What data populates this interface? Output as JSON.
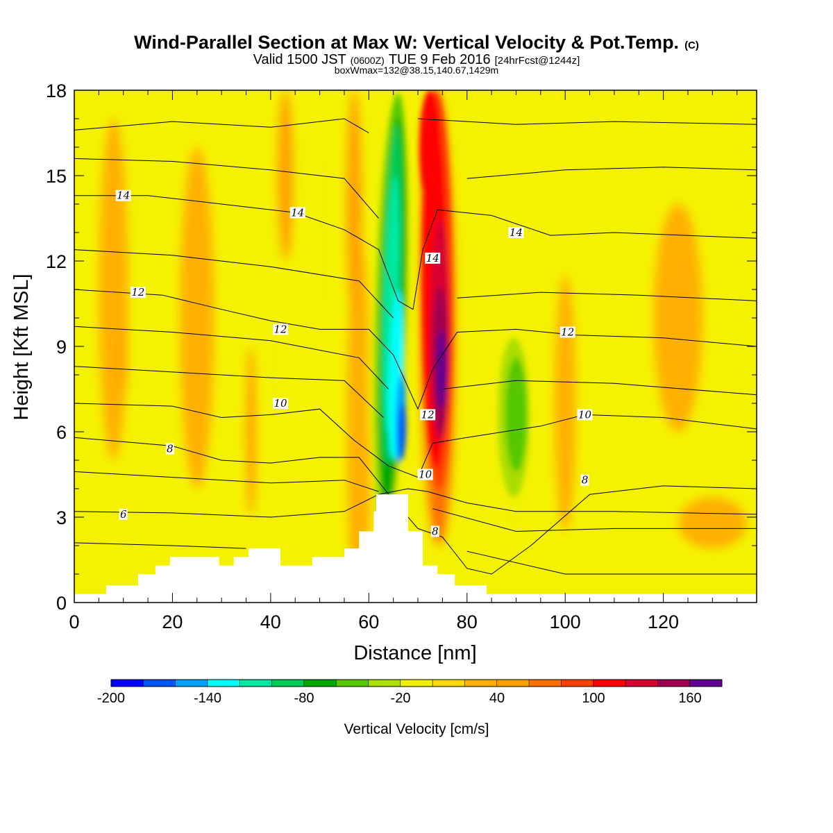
{
  "header": {
    "title_main": "Wind-Parallel Section at Max W: Vertical Velocity & Pot.Temp.",
    "title_mark": "(C)",
    "valid_pre": "Valid 1500 JST",
    "valid_z": "(0600Z)",
    "valid_date": "TUE 9 Feb 2016",
    "valid_fcst": "[24hrFcst@1244z]",
    "box_info": "boxWmax=132@38.15,140.67,1429m"
  },
  "chart_data": {
    "type": "heatmap",
    "xlabel": "Distance [nm]",
    "ylabel": "Height [Kft MSL]",
    "xlim": [
      0,
      139
    ],
    "ylim": [
      0,
      18
    ],
    "x_ticks": [
      "0",
      "20",
      "40",
      "60",
      "80",
      "100",
      "120"
    ],
    "y_ticks": [
      "0",
      "3",
      "6",
      "9",
      "12",
      "15",
      "18"
    ],
    "colorbar": {
      "label": "Vertical Velocity [cm/s]",
      "min": -200,
      "max": 180,
      "step": 20,
      "tick_labels": [
        "-200",
        "-140",
        "-80",
        "-20",
        "40",
        "100",
        "160"
      ],
      "colors": [
        "#0000ff",
        "#0055ff",
        "#00a0ff",
        "#00ffff",
        "#00e8a0",
        "#00cc55",
        "#00aa00",
        "#55c800",
        "#aadd00",
        "#f2f200",
        "#ffd700",
        "#ffb000",
        "#ffa000",
        "#ff7000",
        "#ff4000",
        "#ff0000",
        "#d80030",
        "#a00050",
        "#600090"
      ]
    },
    "velocity_features": [
      {
        "name": "main downdraft",
        "x": 65.5,
        "y": 6,
        "value": -200
      },
      {
        "name": "upper downdraft",
        "x": 64,
        "y": 13,
        "value": -140
      },
      {
        "name": "main updraft",
        "x": 74.5,
        "y": 8,
        "value": 160
      },
      {
        "name": "upper updraft",
        "x": 73,
        "y": 15,
        "value": 100
      },
      {
        "name": "lee downdraft",
        "x": 90,
        "y": 6.5,
        "value": -60
      },
      {
        "name": "downstream updraft",
        "x": 123,
        "y": 10,
        "value": 30
      }
    ],
    "theta_contours": [
      {
        "value": 6,
        "label": "6",
        "label_x": 10,
        "label_y": 3.1,
        "points": [
          [
            0,
            3.2
          ],
          [
            20,
            3.15
          ],
          [
            40,
            3.0
          ],
          [
            55,
            3.2
          ],
          [
            62,
            3.8
          ],
          [
            68,
            4.0
          ],
          [
            72,
            3.9
          ],
          [
            80,
            3.5
          ],
          [
            90,
            3.2
          ],
          [
            110,
            3.2
          ],
          [
            139,
            3.1
          ]
        ]
      },
      {
        "value": 8,
        "label": "8",
        "label_x": 19.5,
        "label_y": 5.4,
        "points": [
          [
            0,
            5.8
          ],
          [
            20,
            5.5
          ],
          [
            30,
            5.0
          ],
          [
            40,
            4.9
          ],
          [
            50,
            5.1
          ],
          [
            58,
            5.1
          ],
          [
            65,
            3.6
          ],
          [
            70,
            2.6
          ],
          [
            75,
            2.3
          ],
          [
            80,
            1.2
          ],
          [
            85,
            1.0
          ],
          [
            93,
            2.0
          ],
          [
            105,
            3.8
          ],
          [
            120,
            4.1
          ],
          [
            139,
            4.0
          ]
        ]
      },
      {
        "value": 10,
        "label": "10",
        "label_x": 42,
        "label_y": 7.0,
        "points": [
          [
            0,
            7.0
          ],
          [
            20,
            6.9
          ],
          [
            30,
            6.5
          ],
          [
            40,
            6.6
          ],
          [
            50,
            6.8
          ],
          [
            57,
            5.7
          ],
          [
            64,
            4.8
          ],
          [
            70,
            4.4
          ],
          [
            73,
            5.6
          ],
          [
            80,
            5.8
          ],
          [
            95,
            6.2
          ],
          [
            104,
            6.6
          ],
          [
            120,
            6.5
          ],
          [
            139,
            6.1
          ]
        ]
      },
      {
        "value": 12,
        "label": "12",
        "label_x": 42,
        "label_y": 9.6,
        "points": [
          [
            0,
            11.0
          ],
          [
            18,
            10.8
          ],
          [
            30,
            10.3
          ],
          [
            40,
            9.9
          ],
          [
            50,
            9.6
          ],
          [
            60,
            9.6
          ],
          [
            65,
            8.7
          ],
          [
            70,
            6.8
          ],
          [
            73,
            8.2
          ],
          [
            78,
            9.5
          ],
          [
            90,
            9.6
          ],
          [
            102,
            9.4
          ],
          [
            120,
            9.3
          ],
          [
            139,
            9.0
          ]
        ]
      },
      {
        "value": 14,
        "label": "14",
        "label_x": 45.5,
        "label_y": 13.7,
        "points": [
          [
            0,
            14.3
          ],
          [
            15,
            14.3
          ],
          [
            30,
            14.0
          ],
          [
            45,
            13.7
          ],
          [
            55,
            13.1
          ],
          [
            62,
            12.4
          ],
          [
            66,
            10.6
          ],
          [
            69,
            10.3
          ],
          [
            71,
            12.4
          ],
          [
            74,
            13.8
          ],
          [
            85,
            13.6
          ],
          [
            97,
            12.9
          ],
          [
            110,
            13.0
          ],
          [
            139,
            12.8
          ]
        ]
      }
    ],
    "contour_labels": [
      {
        "text": "14",
        "x": 10,
        "y": 14.3
      },
      {
        "text": "14",
        "x": 45.5,
        "y": 13.7
      },
      {
        "text": "14",
        "x": 90,
        "y": 13.0
      },
      {
        "text": "14",
        "x": 73,
        "y": 12.1
      },
      {
        "text": "12",
        "x": 13,
        "y": 10.9
      },
      {
        "text": "12",
        "x": 42,
        "y": 9.6
      },
      {
        "text": "12",
        "x": 100.5,
        "y": 9.5
      },
      {
        "text": "12",
        "x": 72,
        "y": 6.6
      },
      {
        "text": "10",
        "x": 42,
        "y": 7.0
      },
      {
        "text": "10",
        "x": 104,
        "y": 6.6
      },
      {
        "text": "10",
        "x": 71.5,
        "y": 4.5
      },
      {
        "text": "8",
        "x": 19.5,
        "y": 5.4
      },
      {
        "text": "8",
        "x": 104,
        "y": 4.3
      },
      {
        "text": "8",
        "x": 73.5,
        "y": 2.5
      },
      {
        "text": "6",
        "x": 10,
        "y": 3.1
      }
    ],
    "terrain": [
      [
        0,
        0.3
      ],
      [
        6.5,
        0.3
      ],
      [
        6.5,
        0.6
      ],
      [
        13,
        0.6
      ],
      [
        13,
        1.0
      ],
      [
        16.5,
        1.0
      ],
      [
        16.5,
        1.3
      ],
      [
        19.5,
        1.3
      ],
      [
        19.5,
        1.6
      ],
      [
        29.5,
        1.6
      ],
      [
        29.5,
        1.3
      ],
      [
        32.5,
        1.3
      ],
      [
        32.5,
        1.6
      ],
      [
        35.5,
        1.6
      ],
      [
        35.5,
        1.9
      ],
      [
        42,
        1.9
      ],
      [
        42,
        1.3
      ],
      [
        48.5,
        1.3
      ],
      [
        48.5,
        1.6
      ],
      [
        55,
        1.6
      ],
      [
        55,
        1.9
      ],
      [
        58,
        1.9
      ],
      [
        58,
        2.5
      ],
      [
        61,
        2.5
      ],
      [
        61,
        3.2
      ],
      [
        61.5,
        3.2
      ],
      [
        61.5,
        3.8
      ],
      [
        68,
        3.8
      ],
      [
        68,
        2.5
      ],
      [
        71,
        2.5
      ],
      [
        71,
        1.3
      ],
      [
        74,
        1.3
      ],
      [
        74,
        1.0
      ],
      [
        77.5,
        1.0
      ],
      [
        77.5,
        0.6
      ],
      [
        84,
        0.6
      ],
      [
        84,
        0.3
      ],
      [
        139,
        0.3
      ]
    ]
  }
}
